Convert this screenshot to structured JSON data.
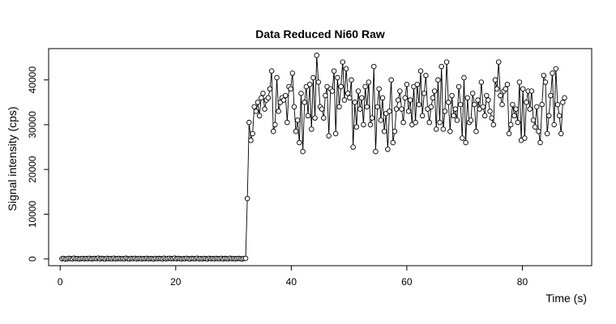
{
  "chart_data": {
    "type": "line",
    "title": "Data Reduced Ni60 Raw",
    "xlabel": "Time (s)",
    "ylabel": "Signal intensity (cps)",
    "xlim": [
      -2,
      92
    ],
    "ylim": [
      -1500,
      47000
    ],
    "xticks": [
      0,
      20,
      40,
      60,
      80
    ],
    "yticks": [
      0,
      10000,
      20000,
      30000,
      40000
    ],
    "xtick_labels": [
      "0",
      "20",
      "40",
      "60",
      "80"
    ],
    "ytick_labels": [
      "0",
      "10000",
      "20000",
      "30000",
      "40000"
    ],
    "grid": false,
    "marker": "open-circle",
    "series": [
      {
        "x_start": 0.3,
        "x_step": 0.3,
        "y": [
          40,
          120,
          0,
          50,
          150,
          80,
          30,
          180,
          60,
          100,
          20,
          90,
          140,
          50,
          110,
          70,
          160,
          30,
          90,
          120,
          60,
          200,
          40,
          130,
          80,
          20,
          150,
          70,
          100,
          50,
          170,
          30,
          90,
          140,
          60,
          110,
          40,
          180,
          80,
          20,
          120,
          60,
          150,
          30,
          90,
          130,
          50,
          100,
          70,
          160,
          40,
          110,
          80,
          20,
          140,
          60,
          120,
          90,
          30,
          170,
          50,
          100,
          150,
          60,
          80,
          200,
          40,
          130,
          90,
          20,
          110,
          60,
          150,
          70,
          30,
          120,
          90,
          60,
          180,
          40,
          100,
          50,
          140,
          80,
          20,
          160,
          70,
          110,
          40,
          130,
          90,
          60,
          150,
          30,
          120,
          80,
          50,
          170,
          60,
          100,
          40,
          90,
          130,
          70,
          20,
          110,
          140,
          13500,
          30500,
          26500,
          28000,
          34000,
          33000,
          35000,
          32000,
          36000,
          37000,
          33500,
          35500,
          36000,
          38000,
          42000,
          28500,
          30000,
          40500,
          33000,
          35000,
          36000,
          35500,
          36500,
          30500,
          38500,
          38000,
          41500,
          34000,
          28500,
          31000,
          26000,
          37000,
          24000,
          35000,
          38500,
          32000,
          39000,
          29000,
          40500,
          31500,
          45500,
          39500,
          34000,
          33500,
          31500,
          36500,
          38500,
          27500,
          38000,
          37500,
          42000,
          28000,
          40500,
          34000,
          38500,
          44000,
          35500,
          42500,
          37000,
          36000,
          40000,
          25000,
          35000,
          29500,
          37500,
          33500,
          36000,
          30000,
          38500,
          34000,
          39500,
          30000,
          31500,
          43000,
          24000,
          34000,
          38000,
          31000,
          36000,
          28500,
          32500,
          24500,
          33000,
          40000,
          26000,
          28500,
          33500,
          35500,
          37500,
          33500,
          30500,
          36000,
          39000,
          33000,
          35500,
          30000,
          38500,
          30500,
          39000,
          34500,
          42000,
          32000,
          37000,
          41000,
          33500,
          30500,
          34000,
          36000,
          37500,
          29000,
          40000,
          30500,
          43000,
          29000,
          33000,
          44000,
          35000,
          28500,
          36500,
          32000,
          33500,
          31000,
          38500,
          34500,
          27000,
          40500,
          26000,
          36000,
          30500,
          31000,
          37000,
          34500,
          28500,
          35500,
          33500,
          39500,
          34000,
          32000,
          36500,
          35500,
          33000,
          31500,
          30000,
          40000,
          38000,
          44000,
          36500,
          34500,
          37500,
          38000,
          39000,
          28000,
          30000,
          34500,
          32000,
          33500,
          30500,
          39500,
          26500,
          38000,
          27000,
          35000,
          37500,
          33500,
          37500,
          31000,
          29500,
          34000,
          28500,
          26000,
          34500,
          41000,
          39500,
          28000,
          32000,
          36500,
          41500,
          30000,
          42500,
          34500,
          32000,
          28000,
          35000,
          36000
        ]
      }
    ]
  }
}
